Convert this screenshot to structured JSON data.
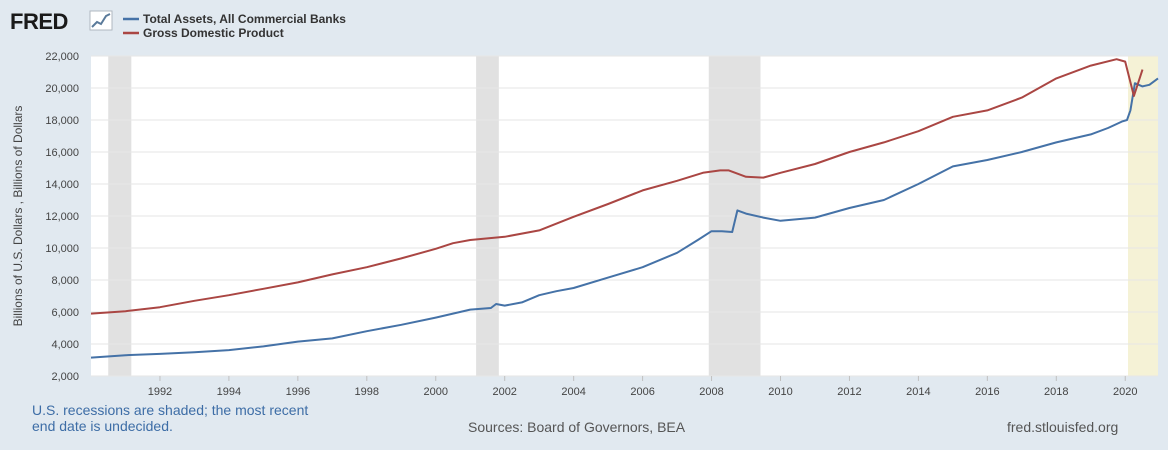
{
  "header": {
    "logo_text": "FRED",
    "logo_icon": "trend-chart-icon"
  },
  "footer": {
    "note_line1": "U.S. recessions are shaded; the most recent",
    "note_line2": "end date is undecided.",
    "sources": "Sources: Board of Governors, BEA",
    "site": "fred.stlouisfed.org"
  },
  "chart_data": {
    "type": "line",
    "title": "",
    "xlabel": "",
    "ylabel": "Billions of U.S. Dollars , Billions of Dollars",
    "xlim": [
      1990.0,
      2020.95
    ],
    "ylim": [
      2000,
      22000
    ],
    "x_ticks": [
      "1992",
      "1994",
      "1996",
      "1998",
      "2000",
      "2002",
      "2004",
      "2006",
      "2008",
      "2010",
      "2012",
      "2014",
      "2016",
      "2018",
      "2020"
    ],
    "y_ticks": [
      "2,000",
      "4,000",
      "6,000",
      "8,000",
      "10,000",
      "12,000",
      "14,000",
      "16,000",
      "18,000",
      "20,000",
      "22,000"
    ],
    "grid": "horizontal",
    "legend": "top-left",
    "recessions": [
      [
        1990.5,
        1991.17
      ],
      [
        2001.17,
        2001.83
      ],
      [
        2007.92,
        2009.42
      ]
    ],
    "highlight_recent": [
      2020.08,
      2020.95
    ],
    "colors": {
      "series1": "#4572a7",
      "series2": "#aa4643",
      "recession": "#e1e1e1",
      "recent": "#f5f2d6",
      "grid": "#e6e6e6"
    },
    "series": [
      {
        "name": "Total Assets, All Commercial Banks",
        "color": "#4572a7",
        "points": [
          [
            1990.0,
            3150
          ],
          [
            1991.0,
            3300
          ],
          [
            1992.0,
            3380
          ],
          [
            1993.0,
            3480
          ],
          [
            1994.0,
            3620
          ],
          [
            1995.0,
            3850
          ],
          [
            1996.0,
            4150
          ],
          [
            1997.0,
            4350
          ],
          [
            1998.0,
            4800
          ],
          [
            1999.0,
            5200
          ],
          [
            2000.0,
            5650
          ],
          [
            2001.0,
            6150
          ],
          [
            2001.6,
            6250
          ],
          [
            2001.75,
            6500
          ],
          [
            2002.0,
            6400
          ],
          [
            2002.5,
            6600
          ],
          [
            2003.0,
            7050
          ],
          [
            2003.5,
            7300
          ],
          [
            2004.0,
            7500
          ],
          [
            2005.0,
            8150
          ],
          [
            2006.0,
            8800
          ],
          [
            2007.0,
            9700
          ],
          [
            2007.6,
            10500
          ],
          [
            2008.0,
            11050
          ],
          [
            2008.3,
            11050
          ],
          [
            2008.6,
            11000
          ],
          [
            2008.75,
            12350
          ],
          [
            2009.0,
            12150
          ],
          [
            2009.5,
            11900
          ],
          [
            2010.0,
            11700
          ],
          [
            2011.0,
            11900
          ],
          [
            2012.0,
            12500
          ],
          [
            2013.0,
            13000
          ],
          [
            2014.0,
            14000
          ],
          [
            2015.0,
            15100
          ],
          [
            2016.0,
            15500
          ],
          [
            2017.0,
            16000
          ],
          [
            2018.0,
            16600
          ],
          [
            2019.0,
            17100
          ],
          [
            2019.5,
            17500
          ],
          [
            2019.9,
            17900
          ],
          [
            2020.05,
            18000
          ],
          [
            2020.15,
            18600
          ],
          [
            2020.28,
            20300
          ],
          [
            2020.5,
            20100
          ],
          [
            2020.7,
            20200
          ],
          [
            2020.95,
            20600
          ]
        ]
      },
      {
        "name": "Gross Domestic Product",
        "color": "#aa4643",
        "points": [
          [
            1990.0,
            5900
          ],
          [
            1991.0,
            6050
          ],
          [
            1992.0,
            6300
          ],
          [
            1993.0,
            6700
          ],
          [
            1994.0,
            7050
          ],
          [
            1995.0,
            7450
          ],
          [
            1996.0,
            7850
          ],
          [
            1997.0,
            8350
          ],
          [
            1998.0,
            8800
          ],
          [
            1999.0,
            9350
          ],
          [
            2000.0,
            9950
          ],
          [
            2000.5,
            10300
          ],
          [
            2001.0,
            10500
          ],
          [
            2002.0,
            10700
          ],
          [
            2003.0,
            11100
          ],
          [
            2004.0,
            11950
          ],
          [
            2005.0,
            12750
          ],
          [
            2006.0,
            13600
          ],
          [
            2007.0,
            14200
          ],
          [
            2007.75,
            14700
          ],
          [
            2008.25,
            14850
          ],
          [
            2008.5,
            14850
          ],
          [
            2009.0,
            14450
          ],
          [
            2009.5,
            14400
          ],
          [
            2010.0,
            14700
          ],
          [
            2011.0,
            15250
          ],
          [
            2012.0,
            16000
          ],
          [
            2013.0,
            16600
          ],
          [
            2014.0,
            17300
          ],
          [
            2015.0,
            18200
          ],
          [
            2016.0,
            18600
          ],
          [
            2017.0,
            19400
          ],
          [
            2018.0,
            20600
          ],
          [
            2019.0,
            21400
          ],
          [
            2019.75,
            21800
          ],
          [
            2020.0,
            21650
          ],
          [
            2020.25,
            19500
          ],
          [
            2020.5,
            21150
          ]
        ]
      }
    ]
  }
}
